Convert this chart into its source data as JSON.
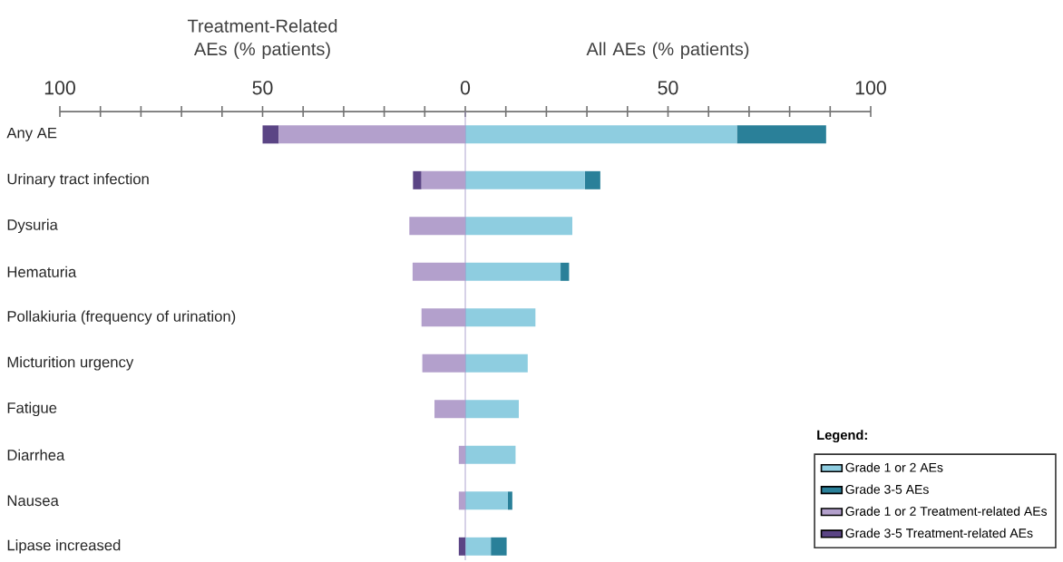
{
  "chart_data": {
    "type": "bar",
    "orientation": "horizontal",
    "stacked": true,
    "categories": [
      "Any AE",
      "Urinary tract infection",
      "Dysuria",
      "Hematuria",
      "Pollakiuria (frequency of urination)",
      "Micturition urgency",
      "Fatigue",
      "Diarrhea",
      "Nausea",
      "Lipase increased"
    ],
    "series": [
      {
        "name": "Grade 1 or 2 AEs",
        "color": "#8ecde0",
        "values": [
          67,
          29.5,
          26.4,
          23.5,
          17.3,
          15.4,
          13.2,
          12.4,
          10.5,
          6.3
        ]
      },
      {
        "name": "Grade 3-5 AEs",
        "color": "#2a8099",
        "values": [
          22,
          3.8,
          0,
          2.1,
          0,
          0,
          0,
          0,
          1.1,
          3.9
        ]
      },
      {
        "name": "Grade 1 or 2 Treatment-related AEs",
        "color": "#b3a0cc",
        "values": [
          -46,
          -10.8,
          -13.8,
          -13,
          -10.8,
          -10.6,
          -7.6,
          -1.6,
          -1.6,
          0
        ]
      },
      {
        "name": "Grade 3-5 Treatment-related AEs",
        "color": "#5b4585",
        "values": [
          -4,
          -2.1,
          0,
          0,
          0,
          0,
          0,
          0,
          0,
          -1.6
        ]
      }
    ],
    "xlim": [
      -100,
      100
    ],
    "xticks": [
      {
        "value": -100,
        "label": "100"
      },
      {
        "value": -90,
        "label": null
      },
      {
        "value": -80,
        "label": null
      },
      {
        "value": -70,
        "label": null
      },
      {
        "value": -60,
        "label": null
      },
      {
        "value": -50,
        "label": "50"
      },
      {
        "value": -40,
        "label": null
      },
      {
        "value": -30,
        "label": null
      },
      {
        "value": -20,
        "label": null
      },
      {
        "value": -10,
        "label": null
      },
      0,
      {
        "value": 10,
        "label": null
      },
      {
        "value": 20,
        "label": null
      },
      {
        "value": 30,
        "label": null
      },
      {
        "value": 40,
        "label": null
      },
      50,
      {
        "value": 60,
        "label": null
      },
      {
        "value": 70,
        "label": null
      },
      {
        "value": 80,
        "label": null
      },
      {
        "value": 90,
        "label": null
      },
      100
    ],
    "annotations": [
      "Treatment-Related AEs (% patients)",
      "All AEs (% patients)"
    ],
    "ref_lines": [
      {
        "axis": "x",
        "value": 0,
        "color": "#9b8dc4"
      }
    ],
    "legend": "bottom right",
    "legend_title": "Legend:"
  }
}
